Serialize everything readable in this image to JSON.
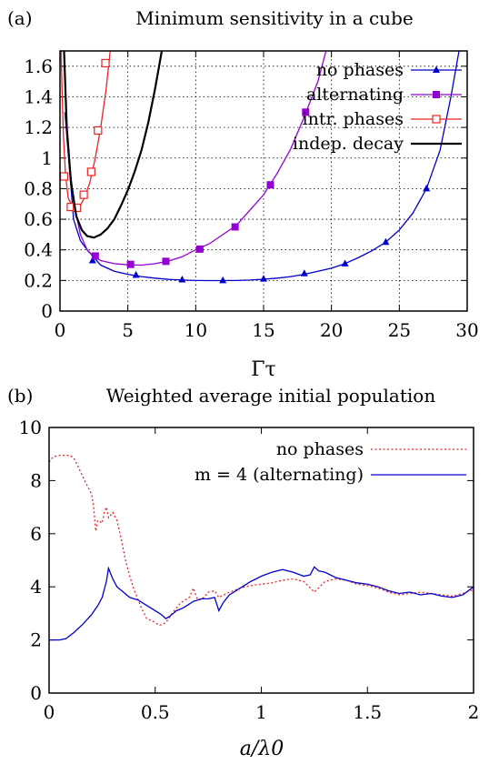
{
  "chart_data": [
    {
      "panel_label": "(a)",
      "type": "line",
      "title": "Minimum sensitivity in a cube",
      "xlabel": "Γτ",
      "ylabel": "",
      "xlim": [
        0,
        30
      ],
      "ylim": [
        0,
        1.7
      ],
      "xticks": [
        "0",
        "5",
        "10",
        "15",
        "20",
        "25",
        "30"
      ],
      "yticks": [
        "0",
        "0.2",
        "0.4",
        "0.6",
        "0.8",
        "1",
        "1.2",
        "1.4",
        "1.6"
      ],
      "grid": true,
      "legend_position": "top-right",
      "series": [
        {
          "name": "no phases",
          "color": "#0000cc",
          "marker": "filled-triangle",
          "line": [
            [
              0.5,
              1.15
            ],
            [
              1,
              0.6
            ],
            [
              1.5,
              0.46
            ],
            [
              2,
              0.4
            ],
            [
              3,
              0.3
            ],
            [
              4,
              0.26
            ],
            [
              5,
              0.24
            ],
            [
              6,
              0.225
            ],
            [
              7,
              0.215
            ],
            [
              8,
              0.207
            ],
            [
              9,
              0.203
            ],
            [
              10,
              0.2
            ],
            [
              11,
              0.199
            ],
            [
              12,
              0.199
            ],
            [
              13,
              0.2
            ],
            [
              14,
              0.203
            ],
            [
              15,
              0.208
            ],
            [
              16,
              0.215
            ],
            [
              17,
              0.225
            ],
            [
              18,
              0.24
            ],
            [
              19,
              0.26
            ],
            [
              20,
              0.28
            ],
            [
              21,
              0.31
            ],
            [
              22,
              0.35
            ],
            [
              23,
              0.395
            ],
            [
              24,
              0.45
            ],
            [
              25,
              0.53
            ],
            [
              26,
              0.64
            ],
            [
              27,
              0.8
            ],
            [
              28,
              1.05
            ],
            [
              28.8,
              1.4
            ],
            [
              29.4,
              1.7
            ]
          ],
          "markers": [
            [
              2.4,
              0.33
            ],
            [
              5.6,
              0.235
            ],
            [
              9,
              0.205
            ],
            [
              12,
              0.2
            ],
            [
              15,
              0.21
            ],
            [
              18,
              0.245
            ],
            [
              21,
              0.31
            ],
            [
              24,
              0.45
            ],
            [
              27,
              0.8
            ]
          ]
        },
        {
          "name": "alternating",
          "color": "#9400d3",
          "marker": "filled-square",
          "line": [
            [
              0.35,
              1.3
            ],
            [
              0.6,
              1.05
            ],
            [
              1,
              0.72
            ],
            [
              1.5,
              0.5
            ],
            [
              2,
              0.4
            ],
            [
              2.5,
              0.355
            ],
            [
              3,
              0.33
            ],
            [
              4,
              0.31
            ],
            [
              5,
              0.302
            ],
            [
              6,
              0.3
            ],
            [
              7,
              0.31
            ],
            [
              8,
              0.327
            ],
            [
              9,
              0.355
            ],
            [
              10,
              0.4
            ],
            [
              11,
              0.44
            ],
            [
              12,
              0.5
            ],
            [
              13,
              0.56
            ],
            [
              14,
              0.66
            ],
            [
              15,
              0.76
            ],
            [
              16,
              0.9
            ],
            [
              17,
              1.06
            ],
            [
              18,
              1.27
            ],
            [
              19,
              1.5
            ],
            [
              19.6,
              1.7
            ]
          ],
          "markers": [
            [
              2.6,
              0.36
            ],
            [
              5.2,
              0.305
            ],
            [
              7.8,
              0.325
            ],
            [
              10.3,
              0.405
            ],
            [
              12.9,
              0.55
            ],
            [
              15.5,
              0.825
            ],
            [
              18.1,
              1.3
            ]
          ]
        },
        {
          "name": "intr. phases",
          "color": "#ee2222",
          "marker": "open-square",
          "line": [
            [
              0.08,
              1.7
            ],
            [
              0.15,
              1.45
            ],
            [
              0.25,
              1.15
            ],
            [
              0.4,
              0.9
            ],
            [
              0.6,
              0.74
            ],
            [
              0.9,
              0.685
            ],
            [
              1.2,
              0.67
            ],
            [
              1.5,
              0.69
            ],
            [
              1.8,
              0.74
            ],
            [
              2.2,
              0.84
            ],
            [
              2.6,
              1.0
            ],
            [
              3.0,
              1.2
            ],
            [
              3.4,
              1.45
            ],
            [
              3.7,
              1.7
            ]
          ],
          "markers": [
            [
              0.3,
              0.88
            ],
            [
              0.8,
              0.68
            ],
            [
              1.25,
              0.675
            ],
            [
              1.75,
              0.76
            ],
            [
              2.3,
              0.91
            ],
            [
              2.8,
              1.18
            ],
            [
              3.35,
              1.62
            ]
          ]
        },
        {
          "name": "indep. decay",
          "color": "#000000",
          "marker": "none",
          "line": [
            [
              0.3,
              1.7
            ],
            [
              0.5,
              1.2
            ],
            [
              0.8,
              0.85
            ],
            [
              1.2,
              0.62
            ],
            [
              1.6,
              0.53
            ],
            [
              2.0,
              0.49
            ],
            [
              2.5,
              0.48
            ],
            [
              3,
              0.5
            ],
            [
              3.5,
              0.54
            ],
            [
              4,
              0.6
            ],
            [
              4.5,
              0.69
            ],
            [
              5,
              0.79
            ],
            [
              5.5,
              0.91
            ],
            [
              6,
              1.05
            ],
            [
              6.5,
              1.23
            ],
            [
              7,
              1.45
            ],
            [
              7.5,
              1.7
            ]
          ],
          "markers": []
        }
      ]
    },
    {
      "panel_label": "(b)",
      "type": "line",
      "title": "Weighted average initial population",
      "xlabel": "a/λ0",
      "ylabel": "",
      "xlim": [
        0,
        2
      ],
      "ylim": [
        0,
        10
      ],
      "xticks": [
        "0",
        "0.5",
        "1",
        "1.5",
        "2"
      ],
      "yticks": [
        "0",
        "2",
        "4",
        "6",
        "8",
        "10"
      ],
      "grid": false,
      "legend_position": "top-right",
      "series": [
        {
          "name": "no phases",
          "color": "#ee2222",
          "style": "dotted",
          "points": [
            [
              0,
              8.7
            ],
            [
              0.02,
              8.9
            ],
            [
              0.05,
              8.95
            ],
            [
              0.1,
              8.95
            ],
            [
              0.12,
              8.8
            ],
            [
              0.15,
              8.3
            ],
            [
              0.18,
              7.8
            ],
            [
              0.2,
              7.5
            ],
            [
              0.21,
              7.0
            ],
            [
              0.22,
              6.1
            ],
            [
              0.23,
              6.5
            ],
            [
              0.25,
              6.4
            ],
            [
              0.26,
              6.8
            ],
            [
              0.27,
              7.0
            ],
            [
              0.28,
              6.6
            ],
            [
              0.3,
              6.8
            ],
            [
              0.32,
              6.5
            ],
            [
              0.34,
              5.8
            ],
            [
              0.36,
              5.0
            ],
            [
              0.38,
              4.4
            ],
            [
              0.4,
              3.9
            ],
            [
              0.43,
              3.3
            ],
            [
              0.46,
              2.8
            ],
            [
              0.49,
              2.7
            ],
            [
              0.52,
              2.55
            ],
            [
              0.55,
              2.65
            ],
            [
              0.58,
              3.0
            ],
            [
              0.62,
              3.4
            ],
            [
              0.66,
              3.6
            ],
            [
              0.68,
              3.95
            ],
            [
              0.7,
              3.5
            ],
            [
              0.73,
              3.6
            ],
            [
              0.75,
              3.8
            ],
            [
              0.78,
              3.85
            ],
            [
              0.8,
              3.6
            ],
            [
              0.85,
              3.8
            ],
            [
              0.9,
              3.95
            ],
            [
              0.95,
              4.05
            ],
            [
              1.0,
              4.1
            ],
            [
              1.05,
              4.15
            ],
            [
              1.1,
              4.25
            ],
            [
              1.15,
              4.3
            ],
            [
              1.2,
              4.2
            ],
            [
              1.25,
              3.8
            ],
            [
              1.3,
              4.2
            ],
            [
              1.35,
              4.3
            ],
            [
              1.4,
              4.25
            ],
            [
              1.45,
              4.1
            ],
            [
              1.5,
              4.05
            ],
            [
              1.55,
              3.95
            ],
            [
              1.6,
              3.8
            ],
            [
              1.65,
              3.7
            ],
            [
              1.7,
              3.75
            ],
            [
              1.75,
              3.8
            ],
            [
              1.8,
              3.75
            ],
            [
              1.85,
              3.7
            ],
            [
              1.9,
              3.65
            ],
            [
              1.95,
              3.75
            ],
            [
              2.0,
              3.9
            ]
          ]
        },
        {
          "name": "m = 4 (alternating)",
          "color": "#0000cc",
          "style": "solid",
          "points": [
            [
              0,
              2.0
            ],
            [
              0.05,
              2.0
            ],
            [
              0.08,
              2.05
            ],
            [
              0.12,
              2.3
            ],
            [
              0.16,
              2.6
            ],
            [
              0.2,
              2.95
            ],
            [
              0.23,
              3.3
            ],
            [
              0.25,
              3.6
            ],
            [
              0.27,
              4.2
            ],
            [
              0.28,
              4.7
            ],
            [
              0.29,
              4.5
            ],
            [
              0.3,
              4.3
            ],
            [
              0.32,
              4.0
            ],
            [
              0.35,
              3.8
            ],
            [
              0.38,
              3.6
            ],
            [
              0.42,
              3.5
            ],
            [
              0.46,
              3.3
            ],
            [
              0.5,
              3.1
            ],
            [
              0.53,
              2.95
            ],
            [
              0.55,
              2.8
            ],
            [
              0.57,
              2.9
            ],
            [
              0.6,
              3.1
            ],
            [
              0.63,
              3.2
            ],
            [
              0.65,
              3.3
            ],
            [
              0.68,
              3.45
            ],
            [
              0.72,
              3.55
            ],
            [
              0.75,
              3.55
            ],
            [
              0.78,
              3.6
            ],
            [
              0.8,
              3.1
            ],
            [
              0.82,
              3.4
            ],
            [
              0.85,
              3.7
            ],
            [
              0.9,
              3.95
            ],
            [
              0.95,
              4.2
            ],
            [
              1.0,
              4.4
            ],
            [
              1.05,
              4.55
            ],
            [
              1.1,
              4.65
            ],
            [
              1.15,
              4.55
            ],
            [
              1.2,
              4.4
            ],
            [
              1.23,
              4.45
            ],
            [
              1.25,
              4.75
            ],
            [
              1.27,
              4.6
            ],
            [
              1.3,
              4.55
            ],
            [
              1.35,
              4.35
            ],
            [
              1.4,
              4.25
            ],
            [
              1.45,
              4.15
            ],
            [
              1.5,
              4.1
            ],
            [
              1.55,
              4.0
            ],
            [
              1.6,
              3.85
            ],
            [
              1.65,
              3.75
            ],
            [
              1.7,
              3.8
            ],
            [
              1.75,
              3.7
            ],
            [
              1.8,
              3.75
            ],
            [
              1.85,
              3.65
            ],
            [
              1.9,
              3.6
            ],
            [
              1.95,
              3.7
            ],
            [
              2.0,
              4.0
            ]
          ]
        }
      ]
    }
  ]
}
